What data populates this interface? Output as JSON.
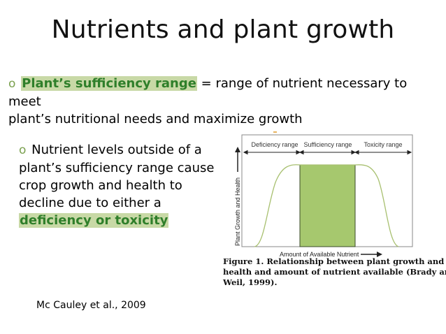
{
  "slide": {
    "title": "Nutrients and plant growth",
    "bullet_glyph": "o",
    "point1": {
      "term": "Plant’s sufficiency range",
      "text_a": " = range of nutrient necessary to meet",
      "text_b": "plant’s nutritional needs and maximize growth"
    },
    "point2": {
      "line1": " Nutrient levels outside of a",
      "line2": "plant’s sufficiency range cause",
      "line3": "crop growth and health to",
      "line4": "decline due to either a",
      "emphasis": "deficiency or toxicity"
    },
    "citation": "Mc Cauley et al., 2009"
  },
  "figure": {
    "range_labels": [
      "Deficiency range",
      "Sufficiency range",
      "Toxicity range"
    ],
    "y_axis_label": "Plant Growth and Health",
    "x_axis_label": "Amount of Available Nutrient",
    "caption": [
      "Figure 1. Relationship between plant growth and",
      "health and amount of nutrient available (Brady and",
      "Weil, 1999)."
    ],
    "colors": {
      "curve": "#a8c070",
      "sufficiency_fill": "#a6c86e",
      "accent": "#2f7f2a"
    }
  }
}
